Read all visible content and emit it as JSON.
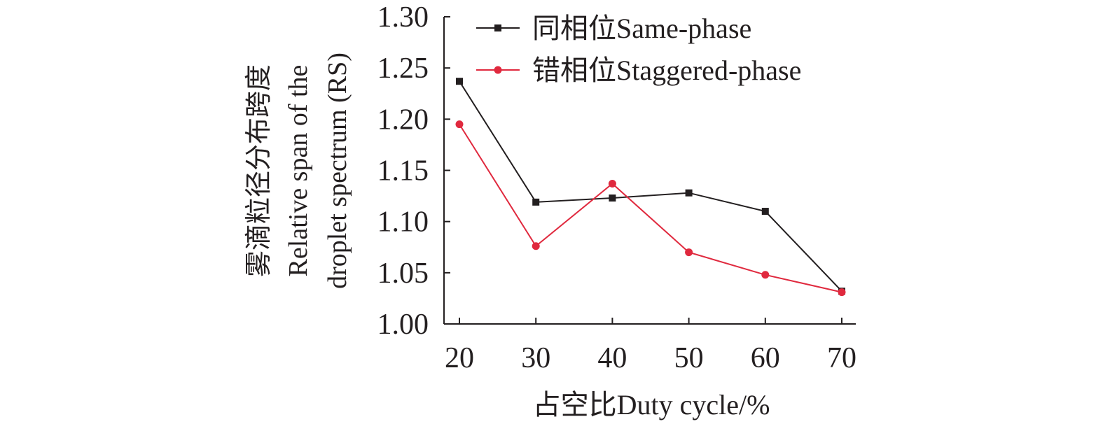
{
  "chart_data": {
    "type": "line",
    "x": [
      20,
      30,
      40,
      50,
      60,
      70
    ],
    "series": [
      {
        "name": "同相位Same-phase",
        "marker": "square",
        "color": "#231f20",
        "values": [
          1.237,
          1.119,
          1.123,
          1.128,
          1.11,
          1.032
        ]
      },
      {
        "name": "错相位Staggered-phase",
        "marker": "circle",
        "color": "#e0293e",
        "values": [
          1.195,
          1.076,
          1.137,
          1.07,
          1.048,
          1.031
        ]
      }
    ],
    "xlabel": "占空比Duty cycle/%",
    "ylabel_lines": [
      "雾滴粒径分布跨度",
      "Relative span of the",
      "droplet spectrum (RS)"
    ],
    "xlim": [
      20,
      70
    ],
    "ylim": [
      1.0,
      1.3
    ],
    "y_ticks": [
      "1.00",
      "1.05",
      "1.10",
      "1.15",
      "1.20",
      "1.25",
      "1.30"
    ],
    "x_ticks": [
      "20",
      "30",
      "40",
      "50",
      "60",
      "70"
    ],
    "grid": false,
    "legend_position": "top-right"
  }
}
